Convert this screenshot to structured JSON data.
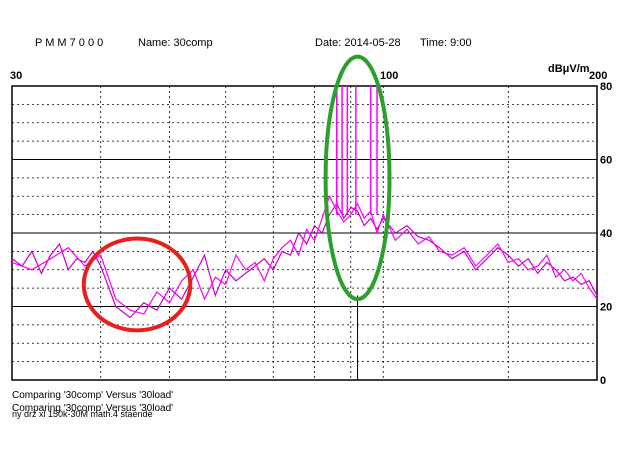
{
  "header": {
    "instrument": "P M M  7 0 0 0",
    "name": "Name: 30comp",
    "date": "Date: 2014-05-28",
    "time": "Time: 9:00"
  },
  "notes": [
    "Comparing '30comp' Versus '30load'",
    "Comparing '30comp' Versus '30load'",
    "ny drz xl 150k-30M math.4 staende"
  ],
  "chart_data": {
    "type": "line",
    "xlabel": "",
    "ylabel": "dBμV/m",
    "x_scale": "log",
    "xlim": [
      30,
      200
    ],
    "ylim": [
      0,
      80
    ],
    "x_tick_labels": [
      {
        "x": 30,
        "label": "30"
      },
      {
        "x": 100,
        "label": "100"
      },
      {
        "x": 200,
        "label": "200"
      }
    ],
    "y_ticks": [
      0,
      20,
      40,
      60,
      80
    ],
    "grid": true,
    "series": [
      {
        "color": "#cc00cc",
        "x": [
          30,
          31,
          32,
          33,
          34,
          35,
          36,
          37,
          38,
          39,
          40,
          42,
          44,
          46,
          48,
          50,
          52,
          54,
          56,
          58,
          60,
          62,
          64,
          66,
          68,
          70,
          72,
          74,
          76,
          78,
          80,
          82,
          84,
          86,
          88,
          90,
          92,
          94,
          96,
          98,
          100,
          104,
          108,
          112,
          116,
          120,
          125,
          130,
          135,
          140,
          145,
          150,
          155,
          160,
          165,
          170,
          175,
          180,
          185,
          190,
          195,
          200
        ],
        "y": [
          33,
          31,
          35,
          29,
          34,
          37,
          30,
          33,
          32,
          35,
          31,
          20,
          17,
          21,
          19,
          25,
          22,
          28,
          34,
          23,
          30,
          27,
          29,
          31,
          33,
          30,
          35,
          34,
          40,
          37,
          42,
          40,
          45,
          48,
          44,
          47,
          46,
          42,
          44,
          41,
          44,
          40,
          42,
          39,
          38,
          36,
          33,
          35,
          30,
          33,
          36,
          34,
          31,
          33,
          29,
          32,
          30,
          27,
          28,
          26,
          27,
          23
        ]
      },
      {
        "color": "#ff00ff",
        "x": [
          30,
          32,
          34,
          36,
          38,
          40,
          42,
          44,
          46,
          48,
          50,
          52,
          54,
          56,
          58,
          60,
          62,
          64,
          66,
          68,
          70,
          72,
          74,
          76,
          78,
          80,
          82,
          84,
          86,
          88,
          90,
          92,
          94,
          96,
          98,
          100,
          104,
          108,
          112,
          116,
          120,
          125,
          130,
          135,
          140,
          145,
          150,
          155,
          160,
          165,
          170,
          175,
          180,
          185,
          190,
          195,
          200
        ],
        "y": [
          32,
          30,
          33,
          36,
          31,
          34,
          22,
          19,
          18,
          24,
          21,
          27,
          30,
          22,
          28,
          26,
          34,
          30,
          32,
          27,
          33,
          36,
          38,
          34,
          41,
          38,
          44,
          50,
          46,
          43,
          45,
          48,
          44,
          46,
          40,
          45,
          38,
          41,
          37,
          39,
          35,
          34,
          36,
          31,
          34,
          37,
          32,
          33,
          30,
          31,
          34,
          28,
          30,
          27,
          29,
          25,
          22
        ]
      }
    ],
    "spikes": [
      {
        "x": 86,
        "y": 80
      },
      {
        "x": 87.5,
        "y": 80
      },
      {
        "x": 89,
        "y": 80
      },
      {
        "x": 91.5,
        "y": 80
      },
      {
        "x": 96,
        "y": 80
      },
      {
        "x": 98,
        "y": 80
      }
    ],
    "marker": {
      "x": 92,
      "y": 0
    }
  },
  "annotations": [
    {
      "shape": "ellipse",
      "color": "#e8201b",
      "x_center": 45,
      "y_center": 26,
      "x_radius_log": 0.075,
      "y_radius": 12.5
    },
    {
      "shape": "ellipse",
      "color": "#2ca02c",
      "x_center": 92,
      "y_center": 55,
      "x_radius_log": 0.045,
      "y_radius": 33
    }
  ]
}
